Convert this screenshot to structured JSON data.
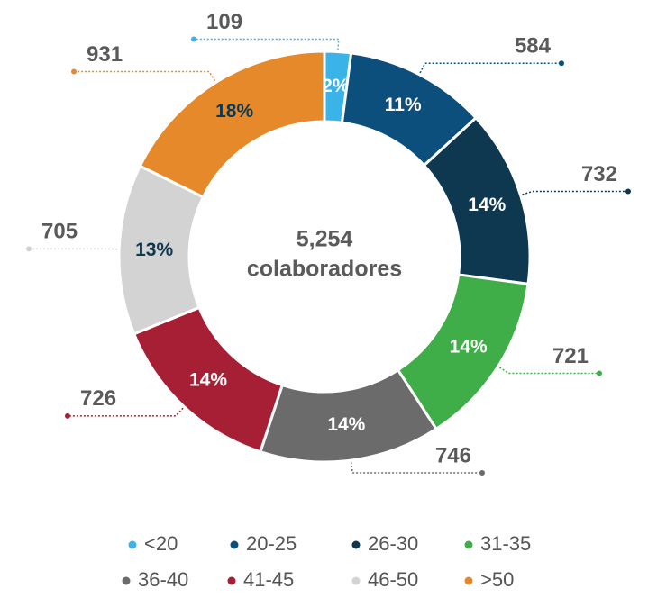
{
  "chart_data": {
    "type": "donut",
    "categories": [
      "<20",
      "20-25",
      "26-30",
      "31-35",
      "36-40",
      "41-45",
      "46-50",
      ">50"
    ],
    "values": [
      109,
      584,
      732,
      721,
      746,
      726,
      705,
      931
    ],
    "percentages": [
      2,
      11,
      14,
      14,
      14,
      14,
      13,
      18
    ],
    "percentage_labels": [
      "2%",
      "11%",
      "14%",
      "14%",
      "14%",
      "14%",
      "13%",
      "18%"
    ],
    "colors": [
      "#3ab4e8",
      "#0d4f7c",
      "#0e3850",
      "#3fae49",
      "#6b6b6b",
      "#a61f35",
      "#d3d3d3",
      "#e5892a"
    ],
    "total_label": "5,254",
    "center_text": "colaboradores"
  }
}
